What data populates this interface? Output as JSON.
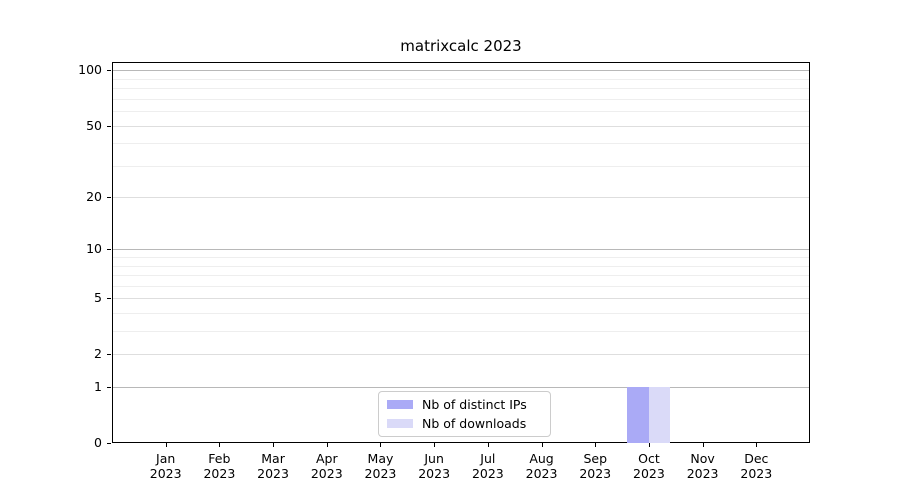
{
  "chart_data": {
    "type": "bar",
    "title": "matrixcalc 2023",
    "x": {
      "months": [
        "Jan",
        "Feb",
        "Mar",
        "Apr",
        "May",
        "Jun",
        "Jul",
        "Aug",
        "Sep",
        "Oct",
        "Nov",
        "Dec"
      ],
      "year": "2023"
    },
    "series": [
      {
        "name": "Nb of distinct IPs",
        "color": "#aaaaf6",
        "values": [
          0,
          0,
          0,
          0,
          0,
          0,
          0,
          0,
          0,
          1,
          0,
          0
        ]
      },
      {
        "name": "Nb of downloads",
        "color": "#dadaf8",
        "values": [
          0,
          0,
          0,
          0,
          0,
          0,
          0,
          0,
          0,
          1,
          0,
          0
        ]
      }
    ],
    "yscale": "log1p",
    "ylim": [
      0,
      111
    ],
    "y_tick_values": [
      0,
      1,
      2,
      5,
      10,
      20,
      50,
      100
    ],
    "y_tick_labels": [
      "0",
      "1",
      "2",
      "5",
      "10",
      "20",
      "50",
      "100"
    ],
    "y_gridline_decades": [
      1,
      10,
      100
    ],
    "y_gridline_labeled_subs": [
      2,
      5,
      20,
      50
    ],
    "y_gridline_minor": [
      3,
      4,
      6,
      7,
      8,
      9,
      30,
      40,
      60,
      70,
      80,
      90
    ],
    "grid": "horizontal",
    "xlabel": "",
    "ylabel": "",
    "legend": {
      "position": "lower center"
    },
    "colors": {
      "grid_decade": "#b8b8b8",
      "grid_labeled_sub": "#dedede",
      "grid_minor": "#eeeeee",
      "axis_spine": "#000000",
      "tick": "#000000",
      "text": "#000000",
      "legend_border": "#cccccc",
      "legend_background": "#ffffff",
      "plot_background": "#ffffff"
    }
  }
}
